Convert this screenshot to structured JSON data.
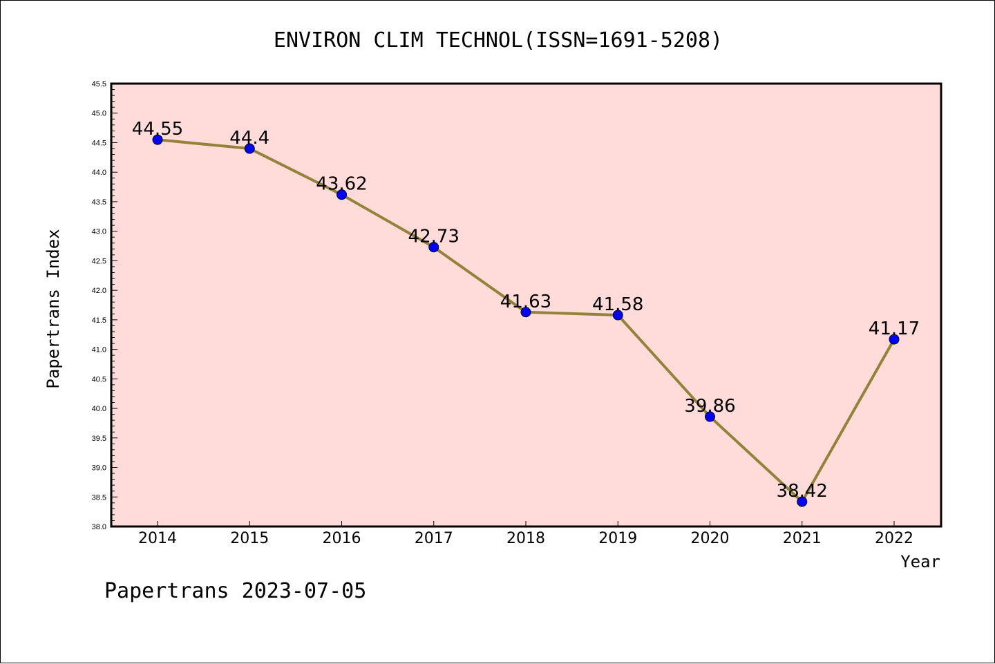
{
  "chart_data": {
    "type": "line",
    "title": "ENVIRON CLIM TECHNOL(ISSN=1691-5208)",
    "xlabel": "Year",
    "ylabel": "Papertrans Index",
    "categories": [
      "2014",
      "2015",
      "2016",
      "2017",
      "2018",
      "2019",
      "2020",
      "2021",
      "2022"
    ],
    "series": [
      {
        "values": [
          44.55,
          44.4,
          43.62,
          42.73,
          41.63,
          41.58,
          39.86,
          38.42,
          41.17
        ],
        "labels": [
          "44.55",
          "44.4",
          "43.62",
          "42.73",
          "41.63",
          "41.58",
          "39.86",
          "38.42",
          "41.17"
        ]
      }
    ],
    "ylim": [
      38.0,
      45.5
    ],
    "yticks": [
      "38.0",
      "38.5",
      "39.0",
      "39.5",
      "40.0",
      "40.5",
      "41.0",
      "41.5",
      "42.0",
      "42.5",
      "43.0",
      "43.5",
      "44.0",
      "44.5",
      "45.0",
      "45.5"
    ],
    "grid": false,
    "colors": {
      "plot_background": "#ffdcda",
      "line": "#948238",
      "marker": "#0000ff"
    }
  },
  "footer": "Papertrans 2023-07-05"
}
